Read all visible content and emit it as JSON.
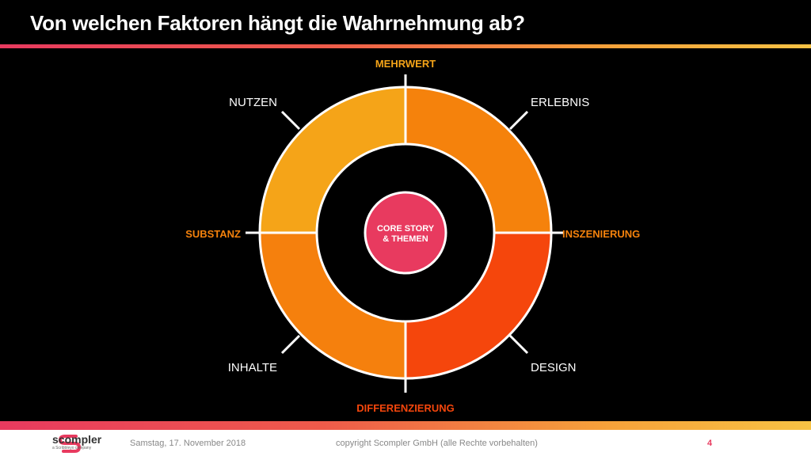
{
  "title": "Von welchen Faktoren hängt die Wahrnehmung ab?",
  "center": {
    "line1": "CORE STORY",
    "line2": "& THEMEN"
  },
  "labels": {
    "mehrwert": "MEHRWERT",
    "nutzen": "NUTZEN",
    "erlebnis": "ERLEBNIS",
    "substanz": "SUBSTANZ",
    "inszenierung": "INSZENIERUNG",
    "inhalte": "INHALTE",
    "design": "DESIGN",
    "differenzierung": "DIFFERENZIERUNG"
  },
  "colors": {
    "nutzen_segment": "#f5a418",
    "erlebnis_segment": "#f5820c",
    "inhalte_segment": "#f5800d",
    "design_segment": "#f5460c",
    "center": "#e83a5f",
    "accent_orange": "#f5820c",
    "accent_red": "#f5460c",
    "accent_gold": "#f5a418"
  },
  "footer": {
    "brand": "scompler",
    "brand_sub": "a Scribbleyo company",
    "date": "Samstag, 17. November 2018",
    "copyright": "copyright Scompler GmbH (alle Rechte vorbehalten)",
    "page": "4"
  }
}
